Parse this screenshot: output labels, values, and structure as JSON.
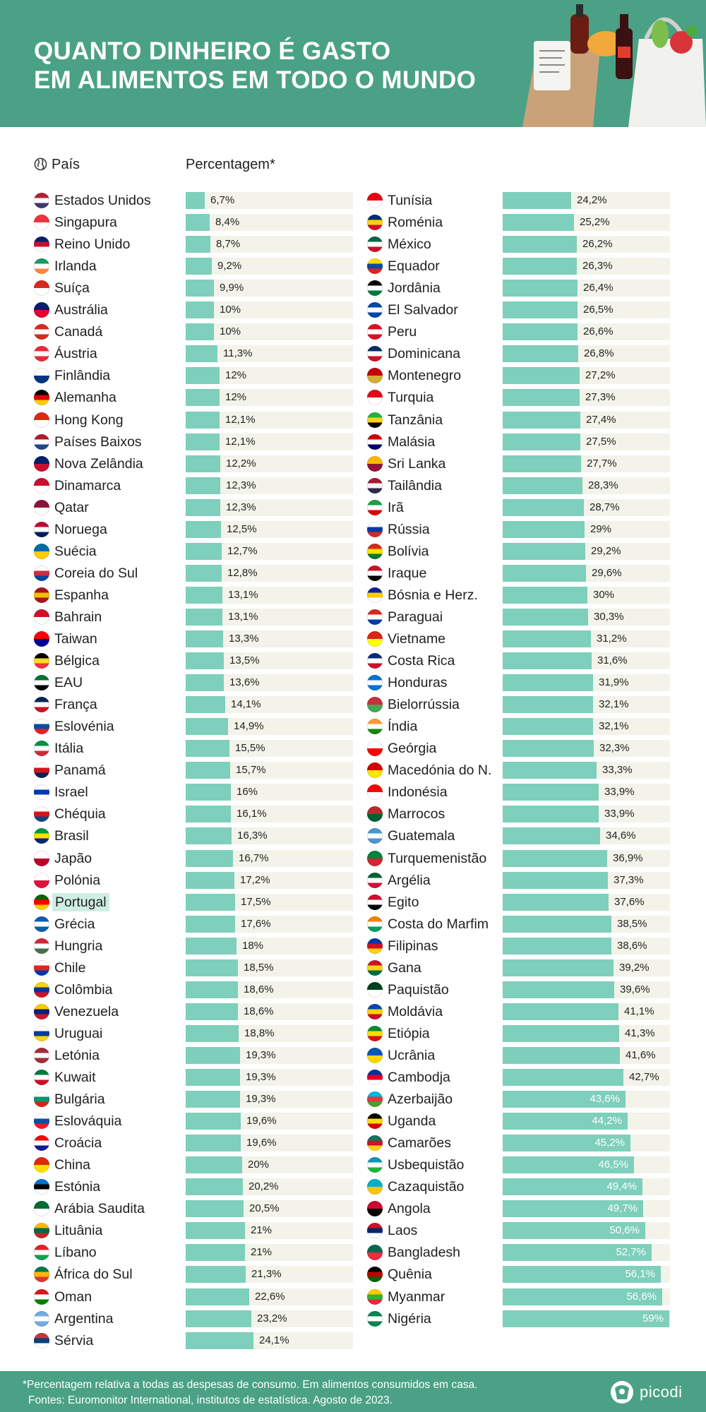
{
  "header": {
    "title_line1": "QUANTO DINHEIRO É GASTO",
    "title_line2": "EM ALIMENTOS EM TODO O MUNDO"
  },
  "columns": {
    "country": "País",
    "percentage": "Percentagem*"
  },
  "footer": {
    "note": "*Percentagem relativa a todas as despesas de consumo. Em alimentos consumidos em casa.",
    "sources": "Fontes: Euromonitor International, institutos de estatística. Agosto de 2023.",
    "brand": "picodi"
  },
  "highlight": "Portugal",
  "colors": {
    "header_bg": "#4ba185",
    "bar": "#7ecfbb",
    "track": "#f3f3ea",
    "highlight": "#cfeee3"
  },
  "chart_data": {
    "type": "bar",
    "title": "QUANTO DINHEIRO É GASTO EM ALIMENTOS EM TODO O MUNDO",
    "xlabel": "Percentagem*",
    "ylabel": "País",
    "xlim": [
      0,
      60
    ],
    "categories": [
      "Estados Unidos",
      "Singapura",
      "Reino Unido",
      "Irlanda",
      "Suíça",
      "Austrália",
      "Canadá",
      "Áustria",
      "Finlândia",
      "Alemanha",
      "Hong Kong",
      "Países Baixos",
      "Nova Zelândia",
      "Dinamarca",
      "Qatar",
      "Noruega",
      "Suécia",
      "Coreia do Sul",
      "Espanha",
      "Bahrain",
      "Taiwan",
      "Bélgica",
      "EAU",
      "França",
      "Eslovénia",
      "Itália",
      "Panamá",
      "Israel",
      "Chéquia",
      "Brasil",
      "Japão",
      "Polónia",
      "Portugal",
      "Grécia",
      "Hungria",
      "Chile",
      "Colômbia",
      "Venezuela",
      "Uruguai",
      "Letónia",
      "Kuwait",
      "Bulgária",
      "Eslováquia",
      "Croácia",
      "China",
      "Estónia",
      "Arábia Saudita",
      "Lituânia",
      "Líbano",
      "África do Sul",
      "Oman",
      "Argentina",
      "Sérvia",
      "Tunísia",
      "Roménia",
      "México",
      "Equador",
      "Jordânia",
      "El Salvador",
      "Peru",
      "Dominicana",
      "Montenegro",
      "Turquia",
      "Tanzânia",
      "Malásia",
      "Sri Lanka",
      "Tailândia",
      "Irã",
      "Rússia",
      "Bolívia",
      "Iraque",
      "Bósnia e Herz.",
      "Paraguai",
      "Vietname",
      "Costa Rica",
      "Honduras",
      "Bielorrússia",
      "Índia",
      "Geórgia",
      "Macedónia do N.",
      "Indonésia",
      "Marrocos",
      "Guatemala",
      "Turquemenistão",
      "Argélia",
      "Egito",
      "Costa do Marfim",
      "Filipinas",
      "Gana",
      "Paquistão",
      "Moldávia",
      "Etiópia",
      "Ucrânia",
      "Cambodja",
      "Azerbaijão",
      "Uganda",
      "Camarões",
      "Usbequistão",
      "Cazaquistão",
      "Angola",
      "Laos",
      "Bangladesh",
      "Quênia",
      "Myanmar",
      "Nigéria"
    ],
    "values": [
      6.7,
      8.4,
      8.7,
      9.2,
      9.9,
      10,
      10,
      11.3,
      12,
      12,
      12.1,
      12.1,
      12.2,
      12.3,
      12.3,
      12.5,
      12.7,
      12.8,
      13.1,
      13.1,
      13.3,
      13.5,
      13.6,
      14.1,
      14.9,
      15.5,
      15.7,
      16,
      16.1,
      16.3,
      16.7,
      17.2,
      17.5,
      17.6,
      18,
      18.5,
      18.6,
      18.6,
      18.8,
      19.3,
      19.3,
      19.3,
      19.6,
      19.6,
      20,
      20.2,
      20.5,
      21,
      21,
      21.3,
      22.6,
      23.2,
      24.1,
      24.2,
      25.2,
      26.2,
      26.3,
      26.4,
      26.5,
      26.6,
      26.8,
      27.2,
      27.3,
      27.4,
      27.5,
      27.7,
      28.3,
      28.7,
      29,
      29.2,
      29.6,
      30,
      30.3,
      31.2,
      31.6,
      31.9,
      32.1,
      32.1,
      32.3,
      33.3,
      33.9,
      33.9,
      34.6,
      36.9,
      37.3,
      37.6,
      38.5,
      38.6,
      39.2,
      39.6,
      41.1,
      41.3,
      41.6,
      42.7,
      43.6,
      44.2,
      45.2,
      46.5,
      49.4,
      49.7,
      50.6,
      52.7,
      56.1,
      56.6,
      59
    ],
    "labels": [
      "6,7%",
      "8,4%",
      "8,7%",
      "9,2%",
      "9,9%",
      "10%",
      "10%",
      "11,3%",
      "12%",
      "12%",
      "12,1%",
      "12,1%",
      "12,2%",
      "12,3%",
      "12,3%",
      "12,5%",
      "12,7%",
      "12,8%",
      "13,1%",
      "13,1%",
      "13,3%",
      "13,5%",
      "13,6%",
      "14,1%",
      "14,9%",
      "15,5%",
      "15,7%",
      "16%",
      "16,1%",
      "16,3%",
      "16,7%",
      "17,2%",
      "17,5%",
      "17,6%",
      "18%",
      "18,5%",
      "18,6%",
      "18,6%",
      "18,8%",
      "19,3%",
      "19,3%",
      "19,3%",
      "19,6%",
      "19,6%",
      "20%",
      "20,2%",
      "20,5%",
      "21%",
      "21%",
      "21,3%",
      "22,6%",
      "23,2%",
      "24,1%",
      "24,2%",
      "25,2%",
      "26,2%",
      "26,3%",
      "26,4%",
      "26,5%",
      "26,6%",
      "26,8%",
      "27,2%",
      "27,3%",
      "27,4%",
      "27,5%",
      "27,7%",
      "28,3%",
      "28,7%",
      "29%",
      "29,2%",
      "29,6%",
      "30%",
      "30,3%",
      "31,2%",
      "31,6%",
      "31,9%",
      "32,1%",
      "32,1%",
      "32,3%",
      "33,3%",
      "33,9%",
      "33,9%",
      "34,6%",
      "36,9%",
      "37,3%",
      "37,6%",
      "38,5%",
      "38,6%",
      "39,2%",
      "39,6%",
      "41,1%",
      "41,3%",
      "41,6%",
      "42,7%",
      "43,6%",
      "44,2%",
      "45,2%",
      "46,5%",
      "49,4%",
      "49,7%",
      "50,6%",
      "52,7%",
      "56,1%",
      "56,6%",
      "59%"
    ],
    "flags": [
      [
        "#b22234",
        "#ffffff",
        "#3c3b6e"
      ],
      [
        "#ef3340",
        "#ffffff"
      ],
      [
        "#012169",
        "#c8102e",
        "#ffffff"
      ],
      [
        "#169b62",
        "#ffffff",
        "#ff883e"
      ],
      [
        "#d52b1e",
        "#ffffff"
      ],
      [
        "#012169",
        "#e4002b"
      ],
      [
        "#d52b1e",
        "#ffffff",
        "#d52b1e"
      ],
      [
        "#ed2939",
        "#ffffff",
        "#ed2939"
      ],
      [
        "#ffffff",
        "#003580"
      ],
      [
        "#000000",
        "#dd0000",
        "#ffce00"
      ],
      [
        "#de2910",
        "#ffffff"
      ],
      [
        "#ae1c28",
        "#ffffff",
        "#21468b"
      ],
      [
        "#012169",
        "#c8102e"
      ],
      [
        "#c8102e",
        "#ffffff"
      ],
      [
        "#8a1538",
        "#ffffff"
      ],
      [
        "#ba0c2f",
        "#ffffff",
        "#00205b"
      ],
      [
        "#006aa7",
        "#fecc00"
      ],
      [
        "#ffffff",
        "#cd2e3a",
        "#0047a0"
      ],
      [
        "#aa151b",
        "#f1bf00",
        "#aa151b"
      ],
      [
        "#ce1126",
        "#ffffff"
      ],
      [
        "#fe0000",
        "#000095"
      ],
      [
        "#000000",
        "#fdda24",
        "#ef3340"
      ],
      [
        "#00732f",
        "#ffffff",
        "#000000"
      ],
      [
        "#002654",
        "#ffffff",
        "#ce1126"
      ],
      [
        "#ffffff",
        "#0b4ea2",
        "#ee1c25"
      ],
      [
        "#009246",
        "#ffffff",
        "#ce2b37"
      ],
      [
        "#ffffff",
        "#da121a",
        "#072357"
      ],
      [
        "#ffffff",
        "#0038b8",
        "#ffffff"
      ],
      [
        "#ffffff",
        "#d7141a",
        "#11457e"
      ],
      [
        "#009c3b",
        "#ffdf00",
        "#002776"
      ],
      [
        "#ffffff",
        "#bc002d"
      ],
      [
        "#ffffff",
        "#dc143c"
      ],
      [
        "#006600",
        "#ff0000",
        "#ffcc00"
      ],
      [
        "#0d5eaf",
        "#ffffff",
        "#0d5eaf"
      ],
      [
        "#ce2939",
        "#ffffff",
        "#477050"
      ],
      [
        "#ffffff",
        "#d52b1e",
        "#0039a6"
      ],
      [
        "#fcd116",
        "#003893",
        "#ce1126"
      ],
      [
        "#ffcc00",
        "#00247d",
        "#cf142b"
      ],
      [
        "#ffffff",
        "#0038a8",
        "#fcd116"
      ],
      [
        "#9e3039",
        "#ffffff",
        "#9e3039"
      ],
      [
        "#007a3d",
        "#ffffff",
        "#ce1126"
      ],
      [
        "#ffffff",
        "#00966e",
        "#d62612"
      ],
      [
        "#ffffff",
        "#0b4ea2",
        "#ee1c25"
      ],
      [
        "#ff0000",
        "#ffffff",
        "#171796"
      ],
      [
        "#de2910",
        "#ffde00"
      ],
      [
        "#0072ce",
        "#000000",
        "#ffffff"
      ],
      [
        "#006c35",
        "#ffffff"
      ],
      [
        "#fdb913",
        "#006a44",
        "#c1272d"
      ],
      [
        "#ed1c24",
        "#ffffff",
        "#00a651"
      ],
      [
        "#007a4d",
        "#ffb612",
        "#de3831"
      ],
      [
        "#db161b",
        "#ffffff",
        "#008000"
      ],
      [
        "#74acdf",
        "#ffffff",
        "#74acdf"
      ],
      [
        "#c6363c",
        "#0c4076",
        "#ffffff"
      ],
      [
        "#e70013",
        "#ffffff"
      ],
      [
        "#002b7f",
        "#fcd116",
        "#ce1126"
      ],
      [
        "#006847",
        "#ffffff",
        "#ce1126"
      ],
      [
        "#ffdd00",
        "#034ea2",
        "#ed1c24"
      ],
      [
        "#000000",
        "#ffffff",
        "#007a3d"
      ],
      [
        "#0047ab",
        "#ffffff",
        "#0047ab"
      ],
      [
        "#d91023",
        "#ffffff",
        "#d91023"
      ],
      [
        "#002d62",
        "#ffffff",
        "#ce1126"
      ],
      [
        "#c40308",
        "#d3ae3b"
      ],
      [
        "#e30a17",
        "#ffffff"
      ],
      [
        "#1eb53a",
        "#fcd116",
        "#000000"
      ],
      [
        "#cc0001",
        "#ffffff",
        "#010066"
      ],
      [
        "#ffb700",
        "#8d153a"
      ],
      [
        "#a51931",
        "#f4f5f8",
        "#2d2a4a"
      ],
      [
        "#239f40",
        "#ffffff",
        "#da0000"
      ],
      [
        "#ffffff",
        "#0039a6",
        "#d52b1e"
      ],
      [
        "#d52b1e",
        "#f9e300",
        "#007934"
      ],
      [
        "#ce1126",
        "#ffffff",
        "#000000"
      ],
      [
        "#002395",
        "#fecb00",
        "#ffffff"
      ],
      [
        "#d52b1e",
        "#ffffff",
        "#0038a8"
      ],
      [
        "#da251d",
        "#ffff00"
      ],
      [
        "#002b7f",
        "#ffffff",
        "#ce1126"
      ],
      [
        "#0073cf",
        "#ffffff",
        "#0073cf"
      ],
      [
        "#c8313e",
        "#4aa657"
      ],
      [
        "#ff9933",
        "#ffffff",
        "#138808"
      ],
      [
        "#ffffff",
        "#ff0000"
      ],
      [
        "#d20000",
        "#ffe600"
      ],
      [
        "#ff0000",
        "#ffffff"
      ],
      [
        "#c1272d",
        "#006233"
      ],
      [
        "#4997d0",
        "#ffffff",
        "#4997d0"
      ],
      [
        "#00843d",
        "#d22630"
      ],
      [
        "#006233",
        "#ffffff",
        "#d21034"
      ],
      [
        "#ce1126",
        "#ffffff",
        "#000000"
      ],
      [
        "#f77f00",
        "#ffffff",
        "#009e60"
      ],
      [
        "#0038a8",
        "#ce1126",
        "#fcd116"
      ],
      [
        "#ce1126",
        "#fcd116",
        "#006b3f"
      ],
      [
        "#01411c",
        "#ffffff"
      ],
      [
        "#0046ae",
        "#ffd200",
        "#cc092f"
      ],
      [
        "#078930",
        "#fcdd09",
        "#da121a"
      ],
      [
        "#0057b7",
        "#ffd700"
      ],
      [
        "#032ea1",
        "#e00025",
        "#ffffff"
      ],
      [
        "#00b5e2",
        "#ef3340",
        "#509e2f"
      ],
      [
        "#000000",
        "#fcdc04",
        "#d90000"
      ],
      [
        "#007a5e",
        "#ce1126",
        "#fcd116"
      ],
      [
        "#0099b5",
        "#ffffff",
        "#1eb53a"
      ],
      [
        "#00afca",
        "#fec50c"
      ],
      [
        "#cc092f",
        "#000000"
      ],
      [
        "#ce1126",
        "#002868",
        "#ffffff"
      ],
      [
        "#006a4e",
        "#f42a41"
      ],
      [
        "#000000",
        "#bb0000",
        "#006600"
      ],
      [
        "#fecb00",
        "#34b233",
        "#ea2839"
      ],
      [
        "#008751",
        "#ffffff",
        "#008751"
      ]
    ]
  }
}
